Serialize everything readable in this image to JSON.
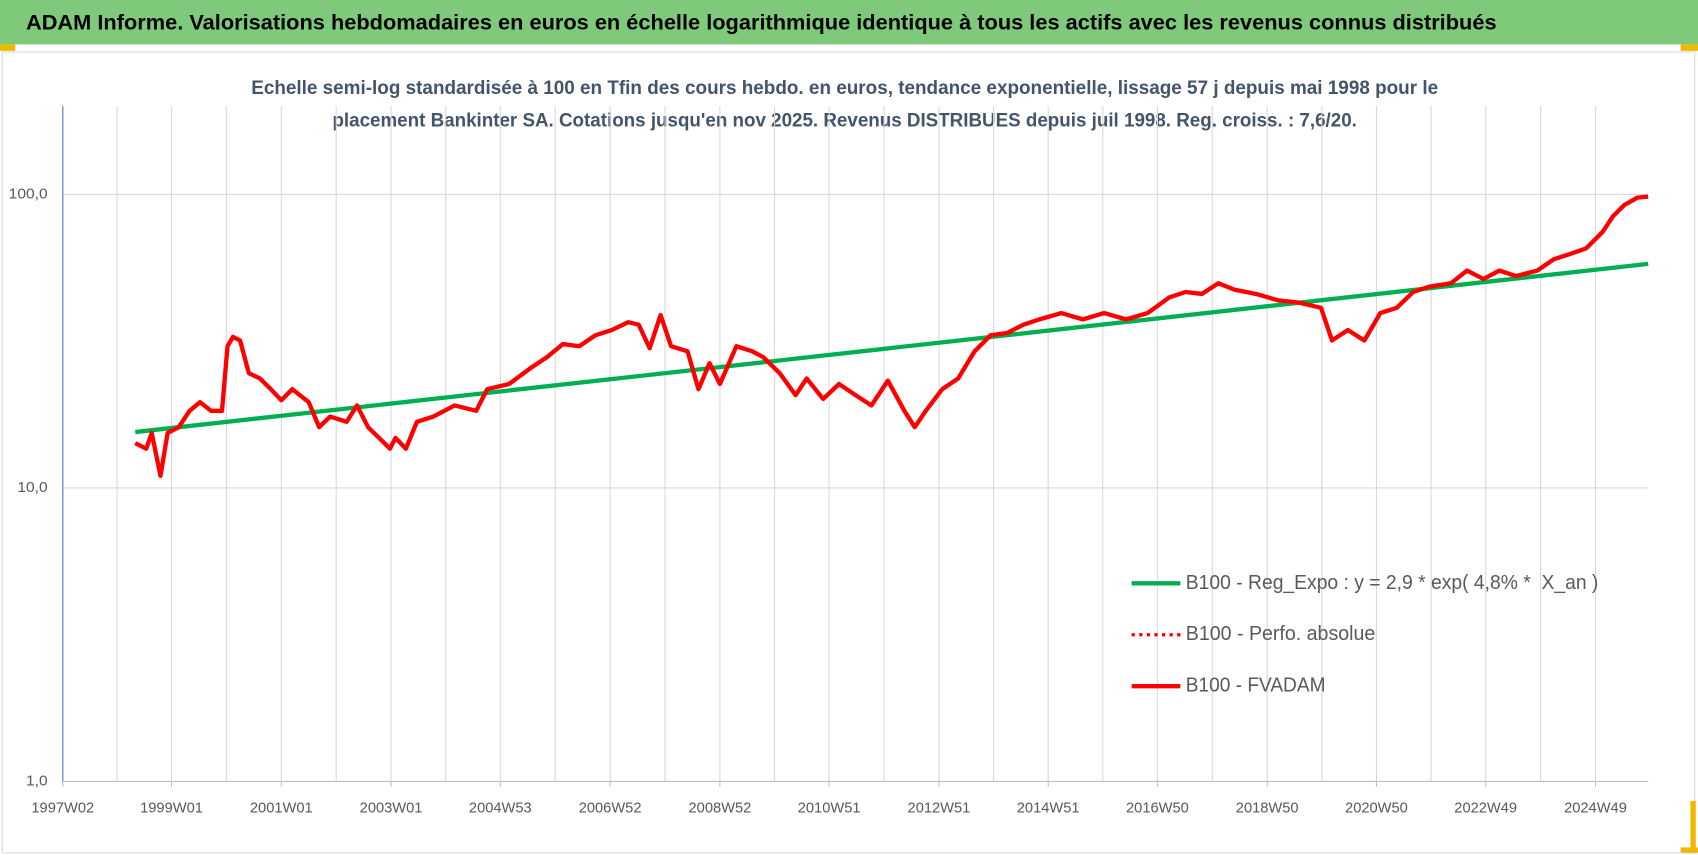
{
  "header": "ADAM Informe. Valorisations hebdomadaires en euros en échelle logarithmique identique à tous les actifs avec les revenus connus distribués",
  "chart_data": {
    "type": "line",
    "title": [
      "Echelle semi-log standardisée à 100 en Tfin des cours hebdo. en euros, tendance exponentielle, lissage 57 j depuis mai 1998 pour le",
      "placement Bankinter SA. Cotations jusqu'en nov 2025. Revenus DISTRIBUES depuis juil 1998. Reg. croiss. : 7,6/20."
    ],
    "log_y": true,
    "grid": true,
    "legend": "right",
    "xlim": [
      1997.02,
      2025.9
    ],
    "xticks": [
      {
        "value": 1997.02,
        "label": "1997W02"
      },
      {
        "value": 1999.0,
        "label": "1999W01"
      },
      {
        "value": 2001.0,
        "label": "2001W01"
      },
      {
        "value": 2003.0,
        "label": "2003W01"
      },
      {
        "value": 2004.99,
        "label": "2004W53"
      },
      {
        "value": 2006.99,
        "label": "2006W52"
      },
      {
        "value": 2008.99,
        "label": "2008W52"
      },
      {
        "value": 2010.98,
        "label": "2010W51"
      },
      {
        "value": 2012.98,
        "label": "2012W51"
      },
      {
        "value": 2014.97,
        "label": "2014W51"
      },
      {
        "value": 2016.96,
        "label": "2016W50"
      },
      {
        "value": 2018.96,
        "label": "2018W50"
      },
      {
        "value": 2020.95,
        "label": "2020W50"
      },
      {
        "value": 2022.94,
        "label": "2022W49"
      },
      {
        "value": 2024.94,
        "label": "2024W49"
      }
    ],
    "ylim": [
      1,
      200
    ],
    "yticks": [
      {
        "value": 1,
        "label": "1,0"
      },
      {
        "value": 10,
        "label": "10,0"
      },
      {
        "value": 100,
        "label": "100,0"
      }
    ],
    "x": [
      1998.34,
      1998.54,
      1998.64,
      1998.8,
      1998.93,
      1999.13,
      1999.33,
      1999.52,
      1999.72,
      1999.92,
      2000.02,
      2000.12,
      2000.25,
      2000.41,
      2000.61,
      2000.81,
      2001.0,
      2001.2,
      2001.5,
      2001.69,
      2001.89,
      2002.19,
      2002.38,
      2002.58,
      2002.78,
      2002.98,
      2003.08,
      2003.27,
      2003.47,
      2003.77,
      2004.16,
      2004.55,
      2004.75,
      2005.15,
      2005.54,
      2005.84,
      2006.13,
      2006.43,
      2006.72,
      2007.02,
      2007.32,
      2007.51,
      2007.71,
      2007.91,
      2008.1,
      2008.4,
      2008.6,
      2008.8,
      2008.99,
      2009.29,
      2009.58,
      2009.78,
      2010.08,
      2010.37,
      2010.57,
      2010.87,
      2011.16,
      2011.46,
      2011.75,
      2012.05,
      2012.35,
      2012.54,
      2012.74,
      2013.04,
      2013.33,
      2013.63,
      2013.92,
      2014.22,
      2014.52,
      2014.81,
      2015.21,
      2015.6,
      2015.99,
      2016.39,
      2016.78,
      2017.18,
      2017.47,
      2017.77,
      2018.07,
      2018.36,
      2018.76,
      2019.15,
      2019.54,
      2019.94,
      2020.14,
      2020.43,
      2020.73,
      2021.02,
      2021.32,
      2021.62,
      2021.91,
      2022.31,
      2022.6,
      2022.9,
      2023.19,
      2023.49,
      2023.88,
      2024.18,
      2024.48,
      2024.77,
      2025.07,
      2025.26,
      2025.46,
      2025.7,
      2025.9
    ],
    "series": [
      {
        "name": "B100 - Reg_Expo : y = 2,9 * exp( 4,8% *  X_an )",
        "color": "#00b050",
        "style": "solid",
        "x": [
          1998.34,
          2025.9
        ],
        "values": [
          15.5,
          58
        ]
      },
      {
        "name": "B100 - Perfo. absolue",
        "color": "#ff0000",
        "style": "dotted",
        "values": [
          14.2,
          13.6,
          15.4,
          11.0,
          15.4,
          16.1,
          18.3,
          19.6,
          18.3,
          18.3,
          30.4,
          32.7,
          31.8,
          24.6,
          23.6,
          21.7,
          19.9,
          21.7,
          19.6,
          16.1,
          17.5,
          16.8,
          19.1,
          16.1,
          14.8,
          13.6,
          14.8,
          13.6,
          16.8,
          17.5,
          19.1,
          18.3,
          21.7,
          22.6,
          25.6,
          27.9,
          30.9,
          30.4,
          33.1,
          34.5,
          36.7,
          36.0,
          29.9,
          38.8,
          30.4,
          29.2,
          21.7,
          26.6,
          22.6,
          30.4,
          29.2,
          27.9,
          24.6,
          20.7,
          23.6,
          20.1,
          22.6,
          20.7,
          19.1,
          23.2,
          18.3,
          16.1,
          18.3,
          21.7,
          23.6,
          29.2,
          33.1,
          33.7,
          36.0,
          37.5,
          39.4,
          37.5,
          39.4,
          37.5,
          39.4,
          44.6,
          46.5,
          45.8,
          49.8,
          47.4,
          45.8,
          43.6,
          42.8,
          41.1,
          31.8,
          34.5,
          31.8,
          39.4,
          41.1,
          46.5,
          48.5,
          49.8,
          55.0,
          51.5,
          55.0,
          52.7,
          55.0,
          60.1,
          62.7,
          65.5,
          74.5,
          84.3,
          91.8,
          97.5,
          98.3
        ]
      },
      {
        "name": "B100 - FVADAM",
        "color": "#ff0000",
        "style": "solid",
        "values": [
          14.2,
          13.6,
          15.4,
          11.0,
          15.4,
          16.1,
          18.3,
          19.6,
          18.3,
          18.3,
          30.4,
          32.7,
          31.8,
          24.6,
          23.6,
          21.7,
          19.9,
          21.7,
          19.6,
          16.1,
          17.5,
          16.8,
          19.1,
          16.1,
          14.8,
          13.6,
          14.8,
          13.6,
          16.8,
          17.5,
          19.1,
          18.3,
          21.7,
          22.6,
          25.6,
          27.9,
          30.9,
          30.4,
          33.1,
          34.5,
          36.7,
          36.0,
          29.9,
          38.8,
          30.4,
          29.2,
          21.7,
          26.6,
          22.6,
          30.4,
          29.2,
          27.9,
          24.6,
          20.7,
          23.6,
          20.1,
          22.6,
          20.7,
          19.1,
          23.2,
          18.3,
          16.1,
          18.3,
          21.7,
          23.6,
          29.2,
          33.1,
          33.7,
          36.0,
          37.5,
          39.4,
          37.5,
          39.4,
          37.5,
          39.4,
          44.6,
          46.5,
          45.8,
          49.8,
          47.4,
          45.8,
          43.6,
          42.8,
          41.1,
          31.8,
          34.5,
          31.8,
          39.4,
          41.1,
          46.5,
          48.5,
          49.8,
          55.0,
          51.5,
          55.0,
          52.7,
          55.0,
          60.1,
          62.7,
          65.5,
          74.5,
          84.3,
          91.8,
          97.5,
          98.3
        ]
      }
    ]
  }
}
